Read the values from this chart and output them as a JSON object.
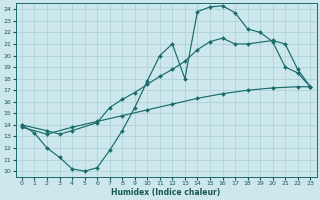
{
  "xlabel": "Humidex (Indice chaleur)",
  "bg_color": "#cce8ec",
  "grid_color": "#aacdd4",
  "line_color": "#1a6b6b",
  "xlim": [
    -0.5,
    23.5
  ],
  "ylim": [
    9.5,
    24.5
  ],
  "xticks": [
    0,
    1,
    2,
    3,
    4,
    5,
    6,
    7,
    8,
    9,
    10,
    11,
    12,
    13,
    14,
    15,
    16,
    17,
    18,
    19,
    20,
    21,
    22,
    23
  ],
  "yticks": [
    10,
    11,
    12,
    13,
    14,
    15,
    16,
    17,
    18,
    19,
    20,
    21,
    22,
    23,
    24
  ],
  "curve1_x": [
    0,
    1,
    2,
    3,
    4,
    5,
    6,
    7,
    8,
    9,
    10,
    11,
    12,
    13,
    14,
    15,
    16,
    17,
    18,
    19,
    20,
    21,
    22,
    23
  ],
  "curve1_y": [
    14.0,
    13.3,
    12.0,
    11.2,
    10.2,
    10.0,
    10.3,
    11.8,
    13.5,
    15.5,
    17.8,
    20.0,
    21.0,
    18.0,
    23.8,
    24.2,
    24.3,
    23.7,
    22.3,
    22.0,
    21.2,
    19.0,
    18.5,
    17.3
  ],
  "curve2_x": [
    0,
    2,
    3,
    4,
    6,
    7,
    8,
    9,
    10,
    11,
    12,
    13,
    14,
    15,
    16,
    17,
    18,
    20,
    21,
    22,
    23
  ],
  "curve2_y": [
    14.0,
    13.5,
    13.2,
    13.5,
    14.2,
    15.5,
    16.2,
    16.8,
    17.5,
    18.2,
    18.8,
    19.5,
    20.5,
    21.2,
    21.5,
    21.0,
    21.0,
    21.3,
    21.0,
    18.8,
    17.3
  ],
  "curve3_x": [
    0,
    2,
    4,
    6,
    8,
    10,
    12,
    14,
    16,
    18,
    20,
    22,
    23
  ],
  "curve3_y": [
    13.8,
    13.2,
    13.8,
    14.3,
    14.8,
    15.3,
    15.8,
    16.3,
    16.7,
    17.0,
    17.2,
    17.3,
    17.3
  ]
}
